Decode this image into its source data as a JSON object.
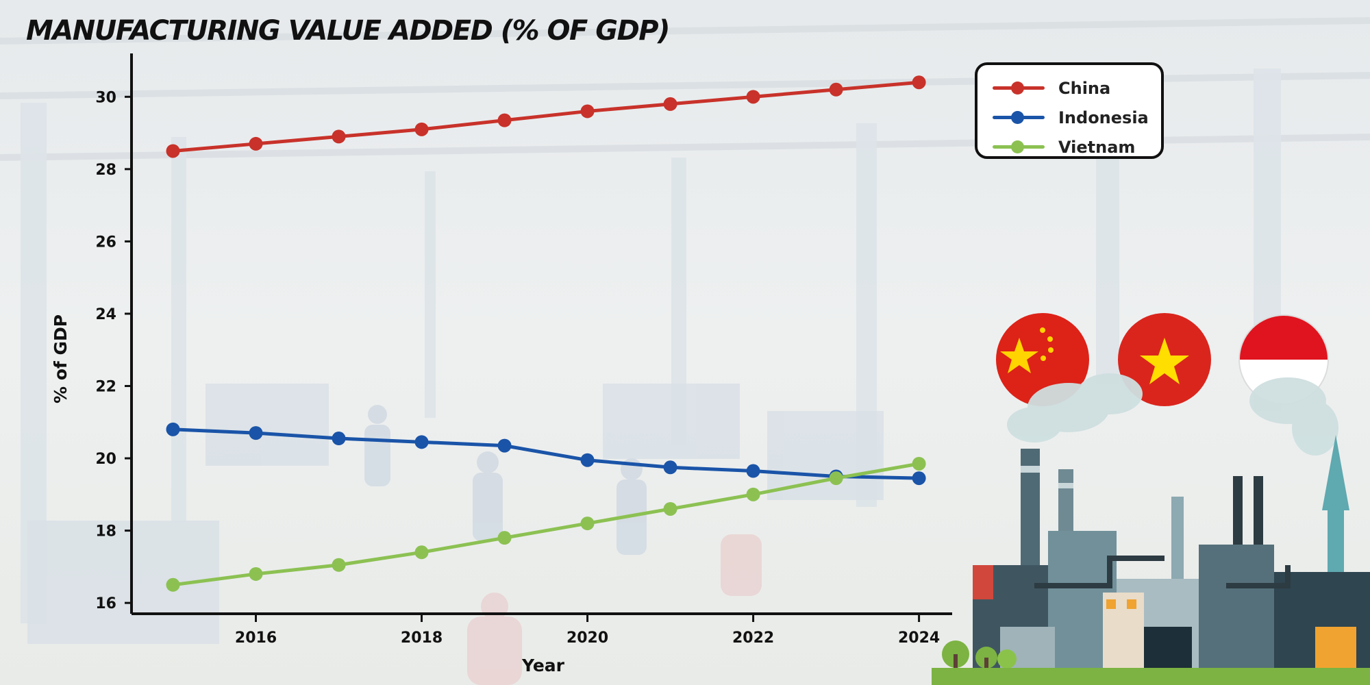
{
  "chart_data": {
    "type": "line",
    "title": "MANUFACTURING VALUE ADDED (% OF GDP)",
    "xlabel": "Year",
    "ylabel": "% of GDP",
    "x": [
      2015,
      2016,
      2017,
      2018,
      2019,
      2020,
      2021,
      2022,
      2023,
      2024
    ],
    "xticks": [
      "2016",
      "2018",
      "2020",
      "2022",
      "2024"
    ],
    "yticks": [
      "16",
      "18",
      "20",
      "22",
      "24",
      "26",
      "28",
      "30"
    ],
    "ylim": [
      15.7,
      31.2
    ],
    "xlim": [
      2014.5,
      2024.4
    ],
    "grid": false,
    "legend_position": "top-right",
    "series": [
      {
        "name": "China",
        "color": "#c8322a",
        "values": [
          28.5,
          28.7,
          28.9,
          29.1,
          29.35,
          29.6,
          29.8,
          30.0,
          30.2,
          30.4
        ]
      },
      {
        "name": "Indonesia",
        "color": "#1a54a8",
        "values": [
          20.8,
          20.7,
          20.55,
          20.45,
          20.35,
          19.95,
          19.75,
          19.65,
          19.5,
          19.45
        ]
      },
      {
        "name": "Vietnam",
        "color": "#8cc152",
        "values": [
          16.5,
          16.8,
          17.05,
          17.4,
          17.8,
          18.2,
          18.6,
          19.0,
          19.45,
          19.85
        ]
      }
    ]
  },
  "illustration": {
    "flags": [
      {
        "country": "China",
        "icon": "china-flag-icon"
      },
      {
        "country": "Vietnam",
        "icon": "vietnam-flag-icon"
      },
      {
        "country": "Indonesia",
        "icon": "indonesia-flag-icon"
      }
    ],
    "scene": "factory-with-smokestacks-icon"
  }
}
